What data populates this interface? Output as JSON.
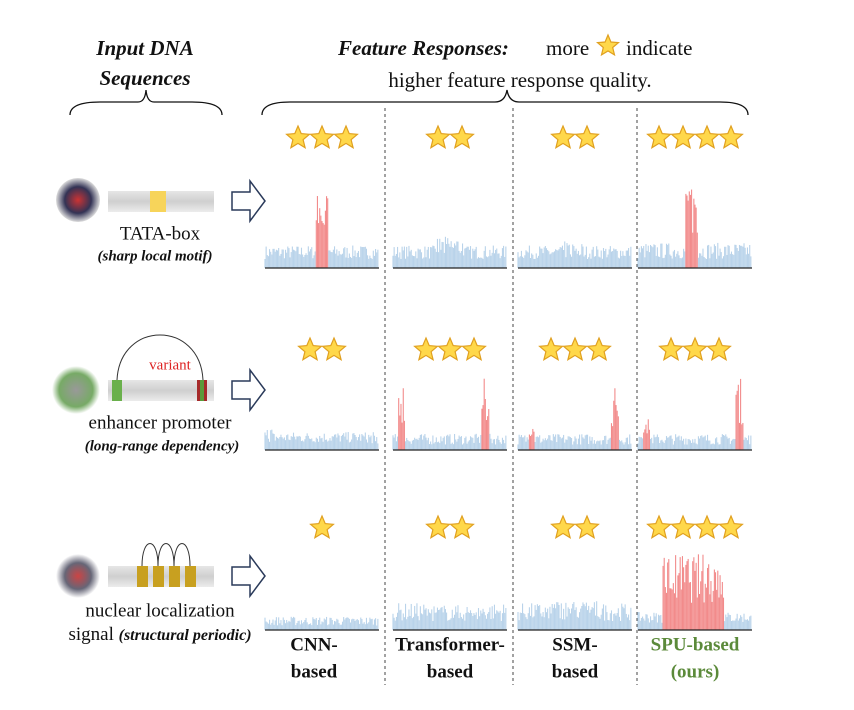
{
  "header": {
    "input_title": [
      "Input DNA",
      "Sequences"
    ],
    "feature_title": "Feature Responses:",
    "feature_more": "more",
    "feature_indicate": "indicate",
    "feature_line2": "higher feature response quality."
  },
  "rows": [
    {
      "label": "TATA-box",
      "note": "(sharp local motif)",
      "stars": [
        3,
        2,
        2,
        4
      ]
    },
    {
      "variant": "variant",
      "label": "enhancer promoter",
      "note": "(long-range dependency)",
      "stars": [
        2,
        3,
        3,
        3
      ]
    },
    {
      "label": "nuclear localization",
      "label2": "signal",
      "note": "(structural periodic)",
      "stars": [
        1,
        2,
        2,
        4
      ]
    }
  ],
  "columns": [
    [
      "CNN-",
      "based"
    ],
    [
      "Transformer-",
      "based"
    ],
    [
      "SSM-",
      "based"
    ],
    [
      "SPU-based",
      "(ours)"
    ]
  ]
}
